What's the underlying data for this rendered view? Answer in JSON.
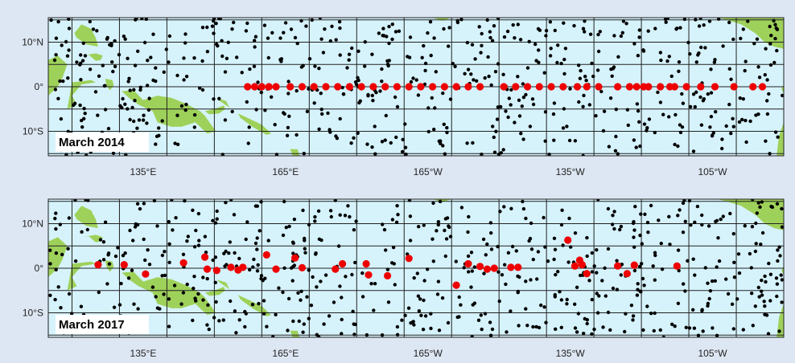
{
  "colors": {
    "background": "#dde7f3",
    "ocean": "#d6f3fc",
    "land": "#9ed15a",
    "grid": "#222222",
    "float": "#000000",
    "equatorial_mooring": "#ee0000"
  },
  "x_tick_labels": [
    "135°E",
    "165°E",
    "165°W",
    "135°W",
    "105°W"
  ],
  "y_tick_labels": [
    "10°N",
    "0°",
    "10°S"
  ],
  "map_extent": {
    "lon_min": 115,
    "lon_max": 270,
    "lat_min": -15.5,
    "lat_max": 15.5
  },
  "panels": [
    {
      "label": "March 2014",
      "red_buoys": [
        [
          157,
          0
        ],
        [
          158.5,
          0
        ],
        [
          160,
          0
        ],
        [
          161.5,
          0
        ],
        [
          163,
          0
        ],
        [
          166,
          0
        ],
        [
          168.5,
          0
        ],
        [
          171,
          0
        ],
        [
          173.5,
          0
        ],
        [
          176,
          0
        ],
        [
          178.5,
          0
        ],
        [
          181,
          0
        ],
        [
          183.5,
          0
        ],
        [
          186,
          0
        ],
        [
          188.5,
          0
        ],
        [
          191,
          0
        ],
        [
          193.5,
          0
        ],
        [
          196,
          0
        ],
        [
          198.5,
          0
        ],
        [
          201,
          0
        ],
        [
          203.5,
          0
        ],
        [
          206,
          0
        ],
        [
          211,
          0
        ],
        [
          213.5,
          0
        ],
        [
          216,
          0
        ],
        [
          218.5,
          0
        ],
        [
          221,
          0
        ],
        [
          223.5,
          0
        ],
        [
          226.5,
          0
        ],
        [
          228.5,
          0
        ],
        [
          231,
          0
        ],
        [
          235,
          0
        ],
        [
          237.5,
          0
        ],
        [
          239,
          0
        ],
        [
          240.5,
          0
        ],
        [
          241.5,
          0
        ],
        [
          244,
          0
        ],
        [
          246,
          0
        ],
        [
          247,
          0
        ],
        [
          249.5,
          0
        ],
        [
          252.5,
          0
        ],
        [
          255.5,
          0
        ],
        [
          259.5,
          0
        ],
        [
          263.5,
          0
        ],
        [
          265.5,
          0
        ]
      ],
      "seed": 20140301
    },
    {
      "label": "March 2017",
      "red_buoys": [
        [
          125.5,
          0.8
        ],
        [
          131,
          0.8
        ],
        [
          135.5,
          -1.3
        ],
        [
          143.5,
          1.2
        ],
        [
          148,
          2.5
        ],
        [
          148.5,
          -0.2
        ],
        [
          150.5,
          -0.5
        ],
        [
          153.5,
          0.2
        ],
        [
          155,
          -0.4
        ],
        [
          156,
          0.2
        ],
        [
          161,
          3
        ],
        [
          163,
          -0.2
        ],
        [
          167,
          2.3
        ],
        [
          168.5,
          0.1
        ],
        [
          175.5,
          -0.2
        ],
        [
          177,
          1
        ],
        [
          182,
          1
        ],
        [
          182.5,
          -1.5
        ],
        [
          186.5,
          -1.7
        ],
        [
          191,
          2.2
        ],
        [
          201,
          -3.8
        ],
        [
          203.5,
          1
        ],
        [
          206,
          0.4
        ],
        [
          207.5,
          -0.2
        ],
        [
          209,
          0
        ],
        [
          212.5,
          0.2
        ],
        [
          214,
          0.2
        ],
        [
          224.5,
          6.3
        ],
        [
          226,
          0.5
        ],
        [
          227,
          1.8
        ],
        [
          227.5,
          0.8
        ],
        [
          228.5,
          -1.2
        ],
        [
          235,
          0.5
        ],
        [
          237,
          -1.2
        ],
        [
          238.5,
          0.7
        ],
        [
          247.5,
          0.5
        ]
      ],
      "seed": 20170301
    }
  ]
}
